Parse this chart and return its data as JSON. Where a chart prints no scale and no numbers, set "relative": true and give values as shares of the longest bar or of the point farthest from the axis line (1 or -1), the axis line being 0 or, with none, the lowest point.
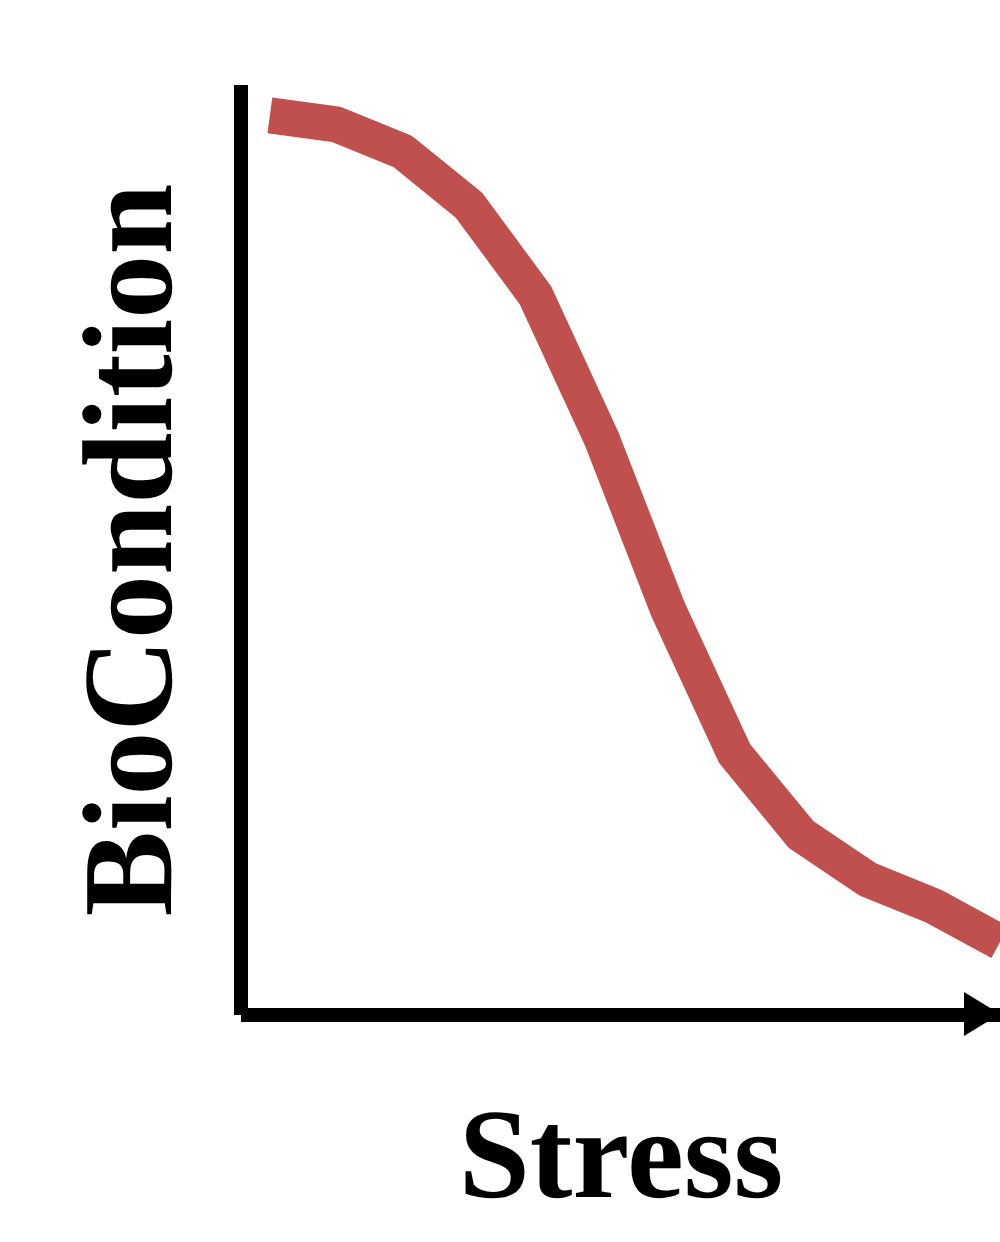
{
  "chart_data": {
    "type": "line",
    "xlabel": "Stress",
    "ylabel": "BioCondition",
    "relative": true,
    "categories": [
      null,
      null,
      null,
      null,
      null,
      null,
      null,
      null,
      null,
      null,
      null,
      null
    ],
    "series": [
      {
        "color": "#c0504d",
        "values": [
          1,
          0.99,
          0.96,
          0.9,
          0.8,
          0.64,
          0.45,
          0.29,
          0.2,
          0.15,
          0.12,
          0.08
        ]
      }
    ]
  }
}
